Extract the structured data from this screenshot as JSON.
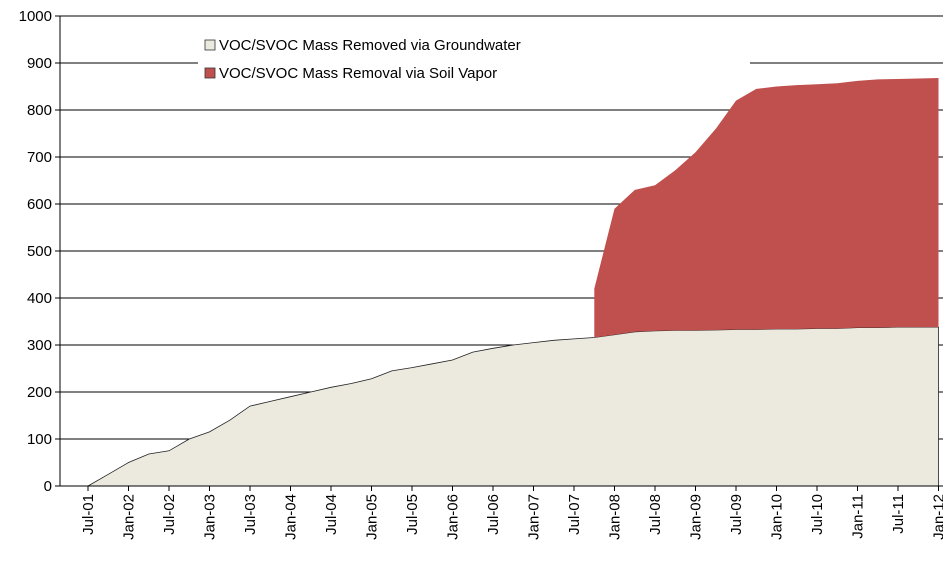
{
  "chart_data": {
    "type": "stacked-area",
    "categories": [
      "Jul-01",
      null,
      "Jan-02",
      null,
      "Jul-02",
      null,
      "Jan-03",
      null,
      "Jul-03",
      null,
      "Jan-04",
      null,
      "Jul-04",
      null,
      "Jan-05",
      null,
      "Jul-05",
      null,
      "Jan-06",
      null,
      "Jul-06",
      null,
      "Jan-07",
      null,
      "Jul-07",
      null,
      "Jan-08",
      null,
      "Jul-08",
      null,
      "Jan-09",
      null,
      "Jul-09",
      null,
      "Jan-10",
      null,
      "Jul-10",
      null,
      "Jan-11",
      null,
      "Jul-11",
      null,
      "Jan-12"
    ],
    "series": [
      {
        "name": "VOC/SVOC Mass Removed via Groundwater",
        "color": "#ece9df",
        "values": [
          0,
          25,
          50,
          68,
          75,
          100,
          115,
          140,
          170,
          180,
          190,
          200,
          210,
          218,
          228,
          245,
          252,
          260,
          268,
          285,
          293,
          300,
          305,
          310,
          313,
          316,
          322,
          328,
          330,
          331,
          331,
          332,
          333,
          333,
          334,
          334,
          335,
          335,
          337,
          337,
          338,
          338,
          338
        ]
      },
      {
        "name": "VOC/SVOC Mass Removal via Soil Vapor",
        "color": "#c0504d",
        "values": [
          null,
          null,
          null,
          null,
          null,
          null,
          null,
          null,
          null,
          null,
          null,
          null,
          null,
          null,
          null,
          null,
          null,
          null,
          null,
          null,
          null,
          null,
          null,
          null,
          null,
          104,
          268,
          302,
          310,
          341,
          379,
          428,
          487,
          512,
          516,
          519,
          520,
          522,
          525,
          528,
          528,
          529,
          530
        ]
      }
    ],
    "ylim": [
      0,
      1000
    ],
    "yticks": [
      0,
      100,
      200,
      300,
      400,
      500,
      600,
      700,
      800,
      900,
      1000
    ],
    "grid": true
  }
}
